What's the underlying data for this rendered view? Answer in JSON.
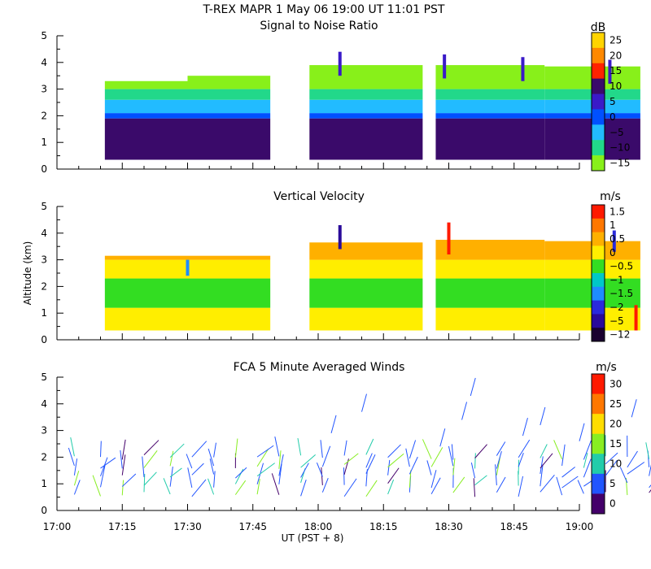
{
  "header": {
    "title": "T-REX   MAPR   1 May 06   19:00 UT   11:01   PST"
  },
  "x_axis": {
    "ticks": [
      "17:00",
      "17:15",
      "17:30",
      "17:45",
      "18:00",
      "18:15",
      "18:30",
      "18:45",
      "19:00"
    ],
    "label": "UT   (PST + 8)",
    "start_minutes": 1020,
    "end_minutes": 1140
  },
  "chart_data": [
    {
      "type": "heatmap",
      "title": "Signal to Noise Ratio",
      "ylabel": "",
      "ylim": [
        0,
        5
      ],
      "yticks": [
        "0",
        "1",
        "2",
        "3",
        "4",
        "5"
      ],
      "colorbar": {
        "unit": "dB",
        "labels": [
          "25",
          "20",
          "15",
          "10",
          "5",
          "0",
          "−5",
          "−10",
          "−15"
        ],
        "colors": [
          "#ffd400",
          "#ff8800",
          "#ff2200",
          "#3a0a6a",
          "#3a1ac8",
          "#0050ff",
          "#22bbff",
          "#22d88a",
          "#88f01a"
        ]
      },
      "segments": [
        {
          "start": 1031,
          "end": 1050,
          "top": 3.3
        },
        {
          "start": 1050,
          "end": 1069,
          "top": 3.5
        },
        {
          "start": 1078,
          "end": 1104,
          "top": 3.9
        },
        {
          "start": 1107,
          "end": 1132,
          "top": 3.9
        },
        {
          "start": 1132,
          "end": 1154,
          "top": 3.85
        }
      ],
      "layers": [
        {
          "from": 0.35,
          "to": 1.9,
          "color": "#3a0a6a"
        },
        {
          "from": 1.9,
          "to": 2.1,
          "color": "#0050ff"
        },
        {
          "from": 2.1,
          "to": 2.6,
          "color": "#22bbff"
        },
        {
          "from": 2.6,
          "to": 3.0,
          "color": "#22d88a"
        },
        {
          "from": 3.0,
          "to": 4.0,
          "color": "#88f01a"
        }
      ],
      "features": [
        {
          "t": 1085,
          "y0": 3.5,
          "y1": 4.4,
          "color": "#3a1ac8"
        },
        {
          "t": 1109,
          "y0": 3.4,
          "y1": 4.3,
          "color": "#3a1ac8"
        },
        {
          "t": 1127,
          "y0": 3.3,
          "y1": 4.2,
          "color": "#3a1ac8"
        },
        {
          "t": 1147,
          "y0": 3.2,
          "y1": 4.1,
          "color": "#3a1ac8"
        }
      ]
    },
    {
      "type": "heatmap",
      "title": "Vertical Velocity",
      "ylabel": "Altitude (km)",
      "ylim": [
        0,
        5
      ],
      "yticks": [
        "0",
        "1",
        "2",
        "3",
        "4",
        "5"
      ],
      "colorbar": {
        "unit": "m/s",
        "labels": [
          "1.5",
          "1",
          "0.5",
          "0",
          "−0.5",
          "−1",
          "−1.5",
          "−2",
          "−5",
          "−12"
        ],
        "colors": [
          "#ff1a00",
          "#ff7700",
          "#ffb000",
          "#ffee00",
          "#33dd22",
          "#00c8c8",
          "#1e8cff",
          "#2a2adc",
          "#2a0a9a",
          "#1a0030"
        ]
      },
      "segments": [
        {
          "start": 1031,
          "end": 1069,
          "top": 3.15
        },
        {
          "start": 1078,
          "end": 1104,
          "top": 3.65
        },
        {
          "start": 1107,
          "end": 1132,
          "top": 3.75
        },
        {
          "start": 1132,
          "end": 1154,
          "top": 3.7
        }
      ],
      "layers": [
        {
          "from": 0.35,
          "to": 1.2,
          "color": "#ffee00"
        },
        {
          "from": 1.2,
          "to": 2.3,
          "color": "#33dd22"
        },
        {
          "from": 2.3,
          "to": 3.0,
          "color": "#ffee00"
        },
        {
          "from": 3.0,
          "to": 4.0,
          "color": "#ffb000"
        }
      ],
      "features": [
        {
          "t": 1050,
          "y0": 2.4,
          "y1": 3.0,
          "color": "#1e8cff"
        },
        {
          "t": 1085,
          "y0": 3.4,
          "y1": 4.3,
          "color": "#2a0a9a"
        },
        {
          "t": 1110,
          "y0": 3.2,
          "y1": 4.4,
          "color": "#ff1a00"
        },
        {
          "t": 1148,
          "y0": 3.3,
          "y1": 4.1,
          "color": "#2a2adc"
        },
        {
          "t": 1153,
          "y0": 0.35,
          "y1": 1.3,
          "color": "#ff1a00"
        }
      ]
    },
    {
      "type": "barbs",
      "title": "FCA 5 Minute Averaged Winds",
      "ylabel": "",
      "ylim": [
        0,
        5
      ],
      "yticks": [
        "0",
        "1",
        "2",
        "3",
        "4",
        "5"
      ],
      "colorbar": {
        "unit": "m/s",
        "labels": [
          "30",
          "25",
          "20",
          "15",
          "10",
          "5",
          "0"
        ],
        "colors": [
          "#ff1a00",
          "#ff7700",
          "#ffdd00",
          "#88ee22",
          "#22ccaa",
          "#2255ff",
          "#44006a"
        ]
      },
      "column_times": [
        1024,
        1030,
        1035,
        1040,
        1046,
        1051,
        1056,
        1061,
        1066,
        1071,
        1076,
        1081,
        1086,
        1091,
        1096,
        1101,
        1106,
        1111,
        1116,
        1121,
        1126,
        1131,
        1136,
        1141,
        1146,
        1151,
        1156
      ],
      "extra_barbs": [
        {
          "t": 1083,
          "alt": 2.9
        },
        {
          "t": 1090,
          "alt": 3.7
        },
        {
          "t": 1108,
          "alt": 2.4
        },
        {
          "t": 1113,
          "alt": 3.4
        },
        {
          "t": 1115,
          "alt": 4.3
        },
        {
          "t": 1127,
          "alt": 2.8
        },
        {
          "t": 1131,
          "alt": 3.2
        },
        {
          "t": 1140,
          "alt": 2.6
        },
        {
          "t": 1152,
          "alt": 3.5
        }
      ]
    }
  ]
}
